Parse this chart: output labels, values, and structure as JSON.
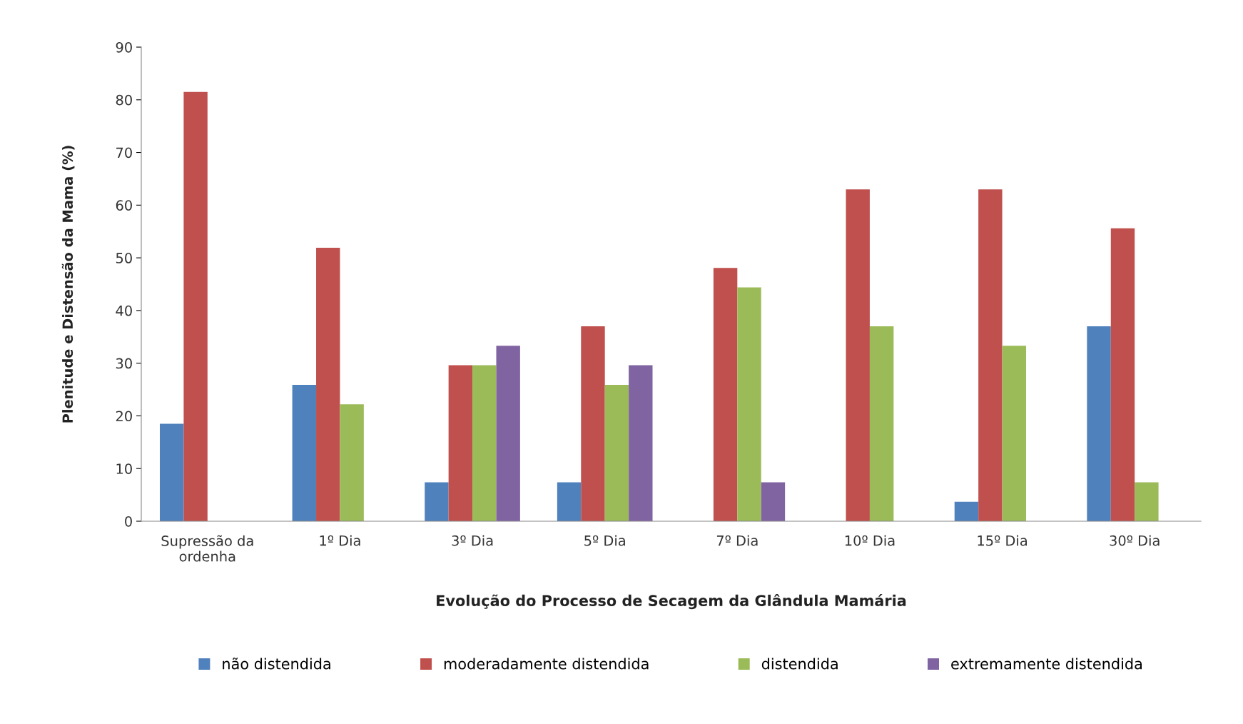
{
  "chart_data": {
    "type": "bar",
    "xlabel": "Evolução do Processo de Secagem da Glândula Mamária",
    "ylabel": "Plenitude e Distensão da Mama (%)",
    "categories": [
      "Supressão da\nordenha",
      "1º Dia",
      "3º Dia",
      "5º Dia",
      "7º Dia",
      "10º Dia",
      "15º Dia",
      "30º Dia"
    ],
    "series": [
      {
        "name": "não distendida",
        "color": "#4f81bd",
        "values": [
          18.5,
          25.9,
          7.4,
          7.4,
          null,
          null,
          3.7,
          37.0
        ]
      },
      {
        "name": "moderadamente distendida",
        "color": "#c0504d",
        "values": [
          81.5,
          51.9,
          29.6,
          37.0,
          48.1,
          63.0,
          63.0,
          55.6
        ]
      },
      {
        "name": "distendida",
        "color": "#9bbb59",
        "values": [
          null,
          22.2,
          29.6,
          25.9,
          44.4,
          37.0,
          33.3,
          7.4
        ]
      },
      {
        "name": "extremamente distendida",
        "color": "#8064a2",
        "values": [
          null,
          null,
          33.3,
          29.6,
          7.4,
          null,
          null,
          null
        ]
      }
    ],
    "ylim": [
      0,
      90
    ],
    "yticks": [
      0,
      10,
      20,
      30,
      40,
      50,
      60,
      70,
      80,
      90
    ],
    "grid": false,
    "legend": "bottom"
  }
}
